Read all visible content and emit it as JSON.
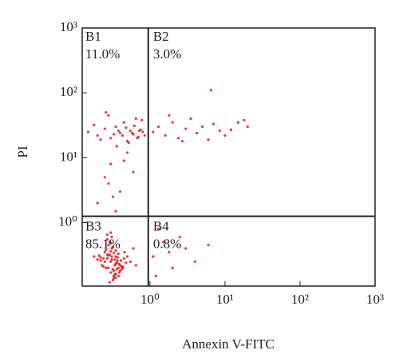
{
  "chart_data": {
    "type": "scatter",
    "xlabel": "Annexin V-FITC",
    "ylabel": "PI",
    "xscale": "log",
    "yscale": "log",
    "color": "#e8141a",
    "xlim": [
      0.125,
      1000
    ],
    "ylim": [
      0.105,
      1000
    ],
    "xticks": [
      {
        "value": 1,
        "label": "10⁰"
      },
      {
        "value": 10,
        "label": "10¹"
      },
      {
        "value": 100,
        "label": "10²"
      },
      {
        "value": 1000,
        "label": "10³"
      }
    ],
    "yticks": [
      {
        "value": 1,
        "label": "10⁰"
      },
      {
        "value": 10,
        "label": "10¹"
      },
      {
        "value": 100,
        "label": "10²"
      },
      {
        "value": 1000,
        "label": "10³"
      }
    ],
    "gates": {
      "x": 0.95,
      "y": 1.25
    },
    "quadrants": {
      "names": [
        "B1",
        "B2",
        "B3",
        "B4"
      ],
      "values": [
        11.0,
        3.0,
        85.1,
        0.8
      ],
      "value_labels": [
        "11.0%",
        "3.0%",
        "85.1%",
        "0.8%"
      ]
    },
    "x": [
      0.3,
      0.35,
      0.28,
      0.4,
      0.25,
      0.33,
      0.45,
      0.22,
      0.31,
      0.38,
      0.27,
      0.36,
      0.42,
      0.29,
      0.34,
      0.24,
      0.5,
      0.32,
      0.26,
      0.39,
      0.3,
      0.37,
      0.21,
      0.44,
      0.28,
      0.35,
      0.33,
      0.41,
      0.23,
      0.31,
      0.36,
      0.27,
      0.48,
      0.3,
      0.34,
      0.25,
      0.38,
      0.29,
      0.43,
      0.32,
      0.2,
      0.35,
      0.27,
      0.4,
      0.31,
      0.26,
      0.37,
      0.33,
      0.46,
      0.29,
      0.34,
      0.24,
      0.39,
      0.3,
      0.36,
      0.28,
      0.42,
      0.32,
      0.22,
      0.35,
      0.55,
      0.6,
      0.18,
      0.65,
      0.3,
      0.33,
      0.27,
      0.38,
      0.31,
      0.35,
      0.15,
      0.2,
      0.25,
      0.3,
      0.35,
      0.4,
      0.45,
      0.5,
      0.55,
      0.6,
      0.65,
      0.7,
      0.75,
      0.8,
      0.18,
      0.22,
      0.28,
      0.33,
      0.38,
      0.43,
      0.48,
      0.52,
      0.58,
      0.62,
      0.68,
      0.72,
      0.78,
      0.85,
      0.26,
      0.36,
      1.1,
      1.3,
      1.6,
      2,
      2.4,
      3,
      3.5,
      4.2,
      5,
      6,
      7,
      8.5,
      10,
      12,
      15,
      18,
      20,
      1.8,
      2.7,
      6.5,
      0.3,
      0.25,
      0.4,
      0.2,
      0.5,
      0.35,
      0.6,
      0.28,
      0.45,
      0.32,
      1.1,
      1.5,
      2,
      1.3,
      3,
      1.2,
      2.5,
      4,
      1.8,
      6
    ],
    "y": [
      0.25,
      0.3,
      0.2,
      0.22,
      0.35,
      0.18,
      0.28,
      0.26,
      0.4,
      0.15,
      0.32,
      0.24,
      0.19,
      0.5,
      0.27,
      0.21,
      0.3,
      0.13,
      0.38,
      0.23,
      0.17,
      0.29,
      0.31,
      0.2,
      0.45,
      0.14,
      0.34,
      0.26,
      0.22,
      0.6,
      0.19,
      0.28,
      0.24,
      0.36,
      0.16,
      0.25,
      0.33,
      0.12,
      0.21,
      0.42,
      0.27,
      0.23,
      0.55,
      0.18,
      0.3,
      0.2,
      0.26,
      0.15,
      0.35,
      0.32,
      0.22,
      0.28,
      0.17,
      0.48,
      0.24,
      0.31,
      0.21,
      0.19,
      0.29,
      0.37,
      0.25,
      0.4,
      0.3,
      0.22,
      0.7,
      0.14,
      0.65,
      0.2,
      0.27,
      0.16,
      25,
      22,
      28,
      20,
      30,
      24,
      35,
      18,
      26,
      23,
      40,
      21,
      27,
      25,
      32,
      19,
      45,
      23,
      26,
      22,
      29,
      17,
      24,
      31,
      20,
      26,
      38,
      22,
      50,
      15,
      25,
      30,
      22,
      35,
      20,
      28,
      40,
      24,
      30,
      19,
      33,
      26,
      22,
      27,
      35,
      38,
      30,
      45,
      18,
      110,
      8,
      5,
      3,
      2,
      12,
      1.5,
      6,
      4,
      9,
      2.5,
      0.3,
      0.5,
      0.2,
      0.8,
      0.4,
      0.15,
      0.6,
      0.25,
      0.35,
      0.45
    ]
  }
}
